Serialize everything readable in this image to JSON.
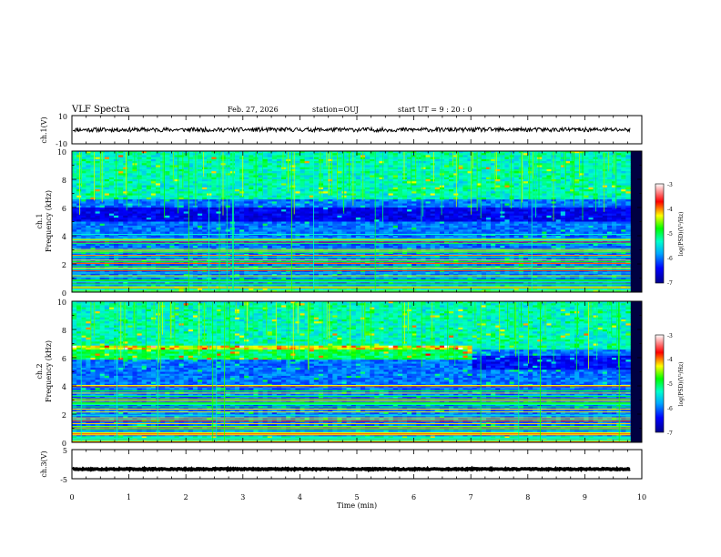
{
  "header": {
    "title": "VLF Spectra",
    "date": "Feb. 27, 2026",
    "station": "station=OUJ",
    "start": "start  UT =   9 : 20 : 0"
  },
  "chart_data": [
    {
      "type": "line",
      "id": "ch1-waveform",
      "ylabel": "ch.1(V)",
      "xlim": [
        0,
        10
      ],
      "ylim": [
        -10,
        10
      ],
      "yticks": [
        "10",
        "-10"
      ],
      "trace_level": 0,
      "trace_amplitude": 1.5
    },
    {
      "type": "heatmap",
      "id": "ch1-spectrogram",
      "ylabel_channel": "ch.1",
      "ylabel": "Frequency  (kHz)",
      "xlim": [
        0,
        10
      ],
      "ylim": [
        0,
        10
      ],
      "yticks": [
        "0",
        "2",
        "4",
        "6",
        "8",
        "10"
      ],
      "data_end_min": 9.8,
      "colorbar": {
        "label": "log(PSD)(V²/Hz)",
        "range": [
          -7,
          -3
        ],
        "ticks": [
          "-3",
          "-4",
          "-5",
          "-6",
          "-7"
        ]
      },
      "features": "broadband impulsive emissions above 6 kHz; dark band near 5-6 kHz; narrowband lines below 4 kHz"
    },
    {
      "type": "heatmap",
      "id": "ch2-spectrogram",
      "ylabel_channel": "ch.2",
      "ylabel": "Frequency  (kHz)",
      "xlim": [
        0,
        10
      ],
      "ylim": [
        0,
        10
      ],
      "yticks": [
        "0",
        "2",
        "4",
        "6",
        "8",
        "10"
      ],
      "data_end_min": 9.8,
      "colorbar": {
        "label": "log(PSD)(V²/Hz)",
        "range": [
          -7,
          -3
        ],
        "ticks": [
          "-3",
          "-4",
          "-5",
          "-6",
          "-7"
        ]
      },
      "features": "enhanced band near 6-7 kHz until ~7 min; impulsive emissions above 7 kHz; narrowband lines below 4 kHz"
    },
    {
      "type": "line",
      "id": "ch3-waveform",
      "ylabel": "ch.3(V)",
      "xlim": [
        0,
        10
      ],
      "ylim": [
        -5,
        5
      ],
      "yticks": [
        "5",
        "-5"
      ],
      "trace_level": -1.7,
      "trace_amplitude": 0.2
    }
  ],
  "xaxis": {
    "label": "Time  (min)",
    "ticks": [
      "0",
      "1",
      "2",
      "3",
      "4",
      "5",
      "6",
      "7",
      "8",
      "9",
      "10"
    ]
  },
  "colors": {
    "colormap": [
      "#00008b",
      "#0000ff",
      "#00aaff",
      "#00ffcc",
      "#00ff00",
      "#ffff00",
      "#ff0000",
      "#ffffff"
    ]
  }
}
